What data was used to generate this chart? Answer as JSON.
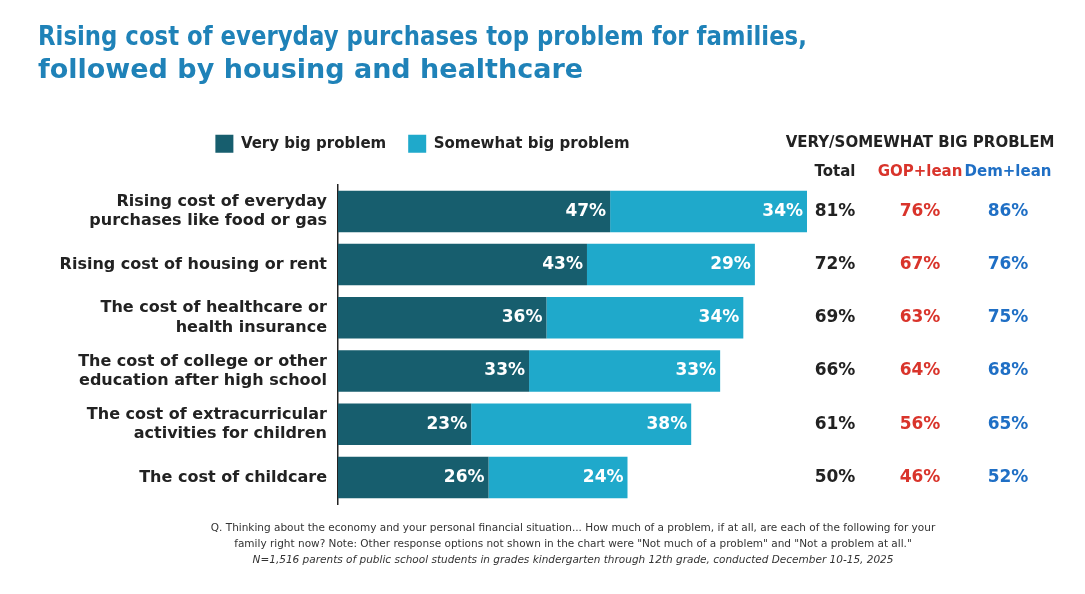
{
  "chart_data": {
    "type": "bar",
    "orientation": "horizontal",
    "stacked": true,
    "title": "Rising cost of everyday purchases top problem for families, followed by housing and healthcare",
    "categories": [
      "Rising cost of everyday purchases like food or gas",
      "Rising cost of housing or rent",
      "The cost of healthcare or health insurance",
      "The cost of college or other education after high school",
      "The cost of extracurricular activities for children",
      "The cost of childcare"
    ],
    "series": [
      {
        "name": "Very big problem",
        "color": "#175e6e",
        "values": [
          47,
          43,
          36,
          33,
          23,
          26
        ],
        "value_labels": [
          "47%",
          "43%",
          "36%",
          "33%",
          "23%",
          "26%"
        ]
      },
      {
        "name": "Somewhat big problem",
        "color": "#1fa9cb",
        "values": [
          34,
          29,
          34,
          33,
          38,
          24
        ],
        "value_labels": [
          "34%",
          "29%",
          "34%",
          "33%",
          "38%",
          "24%"
        ]
      }
    ],
    "legend": "top",
    "annotations": [
      "VERY/SOMEWHAT BIG PROBLEM",
      "Total",
      "GOP+lean",
      "Dem+lean",
      "81%",
      "76%",
      "86%",
      "72%",
      "67%",
      "76%",
      "69%",
      "63%",
      "75%",
      "66%",
      "64%",
      "68%",
      "61%",
      "56%",
      "65%",
      "50%",
      "46%",
      "52%",
      "Q. Thinking about the economy and your personal financial situation... How much of a problem, if at all, are each of the following for your",
      "family right now? Note: Other response options not shown in the chart were \"Not much of a problem\" and \"Not a problem at all.\"",
      "N=1,516 parents of public school students in grades kindergarten through 12th grade, conducted December 10-15, 2025"
    ]
  }
}
